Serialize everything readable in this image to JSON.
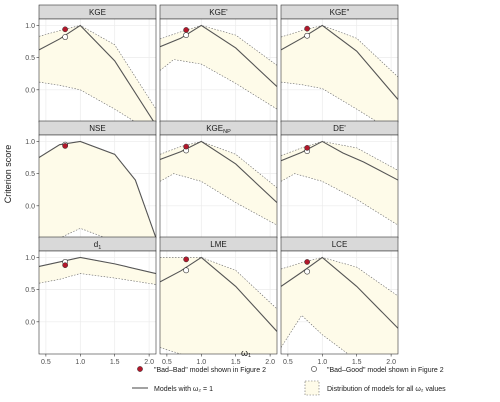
{
  "ylabel": "Criterion score",
  "xlabel": "ω₁",
  "legend": {
    "bad_bad": "\"Bad–Bad\" model shown in Figure 2",
    "bad_good": "\"Bad–Good\" model shown in Figure 2",
    "line": "Models with ω₂ = 1",
    "band": "Distribution of models for all ω₂ values"
  },
  "colors": {
    "bad_bad": "#b2182b",
    "band_fill": "#fefbe9",
    "line": "#555555",
    "panel_bg": "#ffffff",
    "strip_bg": "#d9d9d9"
  },
  "chart_data": {
    "type": "line",
    "xlim": [
      0.4,
      2.1
    ],
    "ylim": [
      -0.5,
      1.1
    ],
    "x_ticks": [
      0.5,
      1.0,
      1.5,
      2.0
    ],
    "x_tick_labels": [
      "0.5",
      "1.0",
      "1.5",
      "2.0"
    ],
    "y_ticks": [
      0.0,
      0.5,
      1.0
    ],
    "y_tick_labels": [
      "0.0",
      "0.5",
      "1.0"
    ],
    "grid": true,
    "panels": [
      {
        "title": "KGE",
        "sub": "",
        "line": [
          [
            0.4,
            0.62
          ],
          [
            0.7,
            0.79
          ],
          [
            1.0,
            1.0
          ],
          [
            1.5,
            0.45
          ],
          [
            2.1,
            -0.55
          ]
        ],
        "upper": [
          [
            0.4,
            0.83
          ],
          [
            0.7,
            0.92
          ],
          [
            1.0,
            1.0
          ],
          [
            1.5,
            0.7
          ],
          [
            2.1,
            -0.3
          ]
        ],
        "lower": [
          [
            0.4,
            0.12
          ],
          [
            0.7,
            0.07
          ],
          [
            1.0,
            0.0
          ],
          [
            1.5,
            -0.3
          ],
          [
            2.1,
            -0.7
          ]
        ],
        "bad_bad": [
          0.78,
          0.94
        ],
        "bad_good": [
          0.78,
          0.82
        ]
      },
      {
        "title": "KGE'",
        "sub": "",
        "line": [
          [
            0.4,
            0.67
          ],
          [
            0.7,
            0.8
          ],
          [
            1.0,
            1.0
          ],
          [
            1.5,
            0.65
          ],
          [
            2.1,
            0.05
          ]
        ],
        "upper": [
          [
            0.4,
            0.79
          ],
          [
            0.7,
            0.9
          ],
          [
            1.0,
            1.0
          ],
          [
            1.5,
            0.85
          ],
          [
            2.1,
            0.38
          ]
        ],
        "lower": [
          [
            0.4,
            0.3
          ],
          [
            0.6,
            0.47
          ],
          [
            1.0,
            0.4
          ],
          [
            1.5,
            0.1
          ],
          [
            2.1,
            -0.3
          ]
        ],
        "bad_bad": [
          0.78,
          0.93
        ],
        "bad_good": [
          0.78,
          0.85
        ]
      },
      {
        "title": "KGE\"",
        "sub": "",
        "line": [
          [
            0.4,
            0.62
          ],
          [
            0.7,
            0.8
          ],
          [
            1.0,
            1.0
          ],
          [
            1.5,
            0.6
          ],
          [
            2.1,
            -0.15
          ]
        ],
        "upper": [
          [
            0.4,
            0.82
          ],
          [
            0.7,
            0.92
          ],
          [
            1.0,
            1.0
          ],
          [
            1.5,
            0.8
          ],
          [
            2.1,
            0.2
          ]
        ],
        "lower": [
          [
            0.4,
            0.12
          ],
          [
            0.7,
            0.08
          ],
          [
            1.0,
            0.02
          ],
          [
            1.5,
            -0.3
          ],
          [
            2.1,
            -0.7
          ]
        ],
        "bad_bad": [
          0.78,
          0.95
        ],
        "bad_good": [
          0.78,
          0.84
        ]
      },
      {
        "title": "NSE",
        "sub": "",
        "line": [
          [
            0.4,
            0.75
          ],
          [
            0.7,
            0.95
          ],
          [
            1.0,
            1.0
          ],
          [
            1.5,
            0.8
          ],
          [
            1.8,
            0.4
          ],
          [
            2.1,
            -0.5
          ]
        ],
        "upper": [
          [
            0.4,
            0.75
          ],
          [
            0.7,
            0.95
          ],
          [
            1.0,
            1.0
          ],
          [
            1.5,
            0.8
          ],
          [
            1.8,
            0.4
          ],
          [
            2.1,
            -0.5
          ]
        ],
        "lower": [
          [
            0.4,
            -0.9
          ],
          [
            0.7,
            -0.5
          ],
          [
            1.0,
            -0.35
          ],
          [
            1.5,
            -0.55
          ],
          [
            2.1,
            -1.2
          ]
        ],
        "bad_bad": [
          0.78,
          0.93
        ],
        "bad_good": [
          0.78,
          0.95
        ]
      },
      {
        "title": "KGE",
        "sub": "NP",
        "line": [
          [
            0.4,
            0.72
          ],
          [
            0.7,
            0.84
          ],
          [
            1.0,
            1.0
          ],
          [
            1.5,
            0.65
          ],
          [
            2.1,
            0.05
          ]
        ],
        "upper": [
          [
            0.4,
            0.8
          ],
          [
            0.7,
            0.92
          ],
          [
            1.0,
            1.0
          ],
          [
            1.5,
            0.8
          ],
          [
            2.1,
            0.28
          ]
        ],
        "lower": [
          [
            0.4,
            0.38
          ],
          [
            0.6,
            0.5
          ],
          [
            1.0,
            0.38
          ],
          [
            1.5,
            0.05
          ],
          [
            2.1,
            -0.3
          ]
        ],
        "bad_bad": [
          0.78,
          0.92
        ],
        "bad_good": [
          0.78,
          0.86
        ]
      },
      {
        "title": "DE'",
        "sub": "",
        "line": [
          [
            0.4,
            0.7
          ],
          [
            0.7,
            0.83
          ],
          [
            1.0,
            1.0
          ],
          [
            1.3,
            0.82
          ],
          [
            1.6,
            0.68
          ],
          [
            2.1,
            0.4
          ]
        ],
        "upper": [
          [
            0.4,
            0.78
          ],
          [
            0.7,
            0.9
          ],
          [
            1.0,
            1.0
          ],
          [
            1.5,
            0.9
          ],
          [
            2.1,
            0.55
          ]
        ],
        "lower": [
          [
            0.4,
            0.38
          ],
          [
            0.6,
            0.5
          ],
          [
            1.0,
            0.38
          ],
          [
            1.5,
            0.1
          ],
          [
            2.1,
            -0.3
          ]
        ],
        "bad_bad": [
          0.78,
          0.9
        ],
        "bad_good": [
          0.78,
          0.85
        ]
      },
      {
        "title": "d",
        "sub": "1",
        "line": [
          [
            0.4,
            0.86
          ],
          [
            0.7,
            0.93
          ],
          [
            1.0,
            1.0
          ],
          [
            1.5,
            0.9
          ],
          [
            2.1,
            0.75
          ]
        ],
        "upper": [
          [
            0.4,
            0.86
          ],
          [
            0.7,
            0.93
          ],
          [
            1.0,
            1.0
          ],
          [
            1.5,
            0.9
          ],
          [
            2.1,
            0.75
          ]
        ],
        "lower": [
          [
            0.4,
            0.6
          ],
          [
            0.7,
            0.66
          ],
          [
            1.0,
            0.75
          ],
          [
            1.5,
            0.68
          ],
          [
            2.1,
            0.58
          ]
        ],
        "bad_bad": [
          0.78,
          0.88
        ],
        "bad_good": [
          0.78,
          0.93
        ]
      },
      {
        "title": "LME",
        "sub": "",
        "line": [
          [
            0.4,
            0.62
          ],
          [
            0.7,
            0.79
          ],
          [
            1.0,
            1.0
          ],
          [
            1.5,
            0.55
          ],
          [
            2.1,
            -0.15
          ]
        ],
        "upper": [
          [
            0.4,
            1.0
          ],
          [
            0.7,
            1.0
          ],
          [
            1.0,
            1.0
          ],
          [
            1.5,
            0.8
          ],
          [
            2.1,
            0.2
          ]
        ],
        "lower": [
          [
            0.4,
            -0.4
          ],
          [
            0.7,
            -0.5
          ],
          [
            1.0,
            -0.6
          ],
          [
            1.5,
            -0.9
          ],
          [
            2.1,
            -1.2
          ]
        ],
        "bad_bad": [
          0.78,
          0.97
        ],
        "bad_good": [
          0.78,
          0.8
        ]
      },
      {
        "title": "LCE",
        "sub": "",
        "line": [
          [
            0.4,
            0.55
          ],
          [
            0.7,
            0.77
          ],
          [
            1.0,
            1.0
          ],
          [
            1.5,
            0.55
          ],
          [
            2.1,
            -0.1
          ]
        ],
        "upper": [
          [
            0.4,
            0.82
          ],
          [
            0.7,
            0.92
          ],
          [
            1.0,
            1.0
          ],
          [
            1.5,
            0.85
          ],
          [
            2.1,
            0.4
          ]
        ],
        "lower": [
          [
            0.4,
            -0.4
          ],
          [
            0.7,
            0.1
          ],
          [
            1.0,
            -0.2
          ],
          [
            1.5,
            -0.6
          ],
          [
            2.1,
            -1.0
          ]
        ],
        "bad_bad": [
          0.78,
          0.93
        ],
        "bad_good": [
          0.78,
          0.78
        ]
      }
    ]
  }
}
